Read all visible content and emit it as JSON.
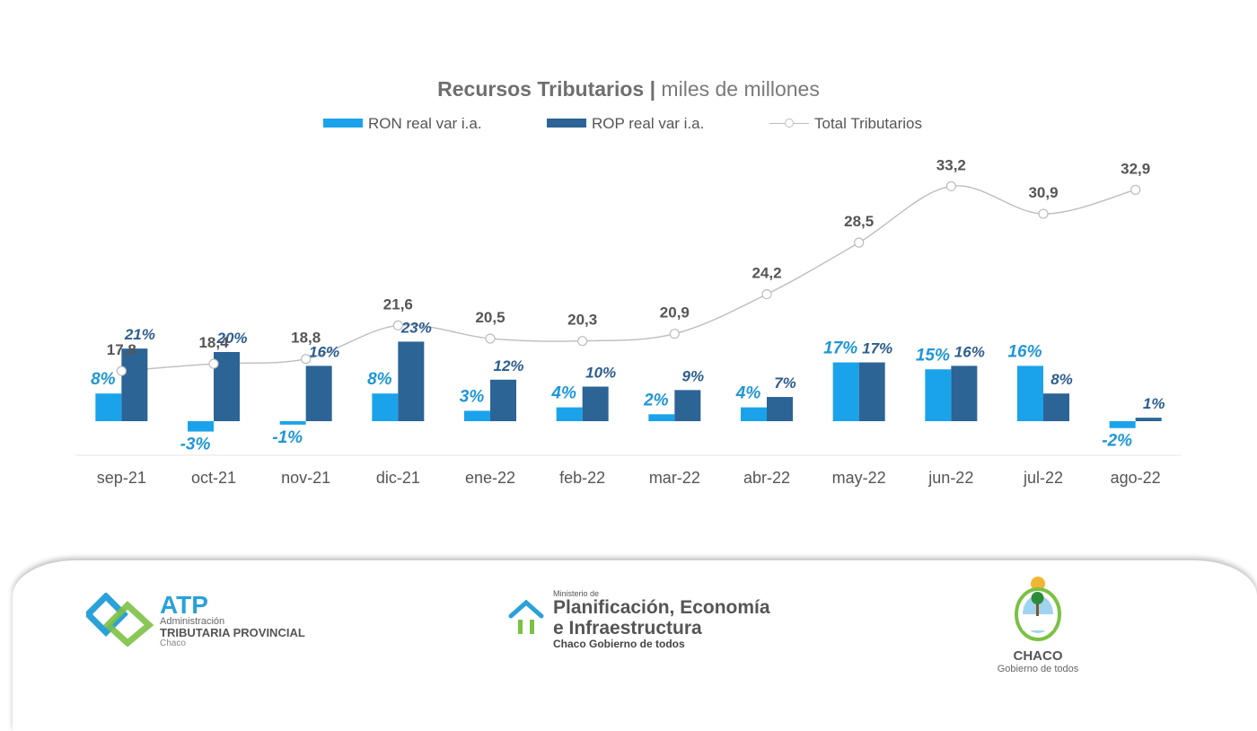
{
  "title_bold": "Recursos Tributarios |",
  "title_rest": " miles de millones",
  "legend": [
    {
      "label": "RON real var i.a.",
      "color": "#1aa3ea"
    },
    {
      "label": "ROP real var i.a.",
      "color": "#2c6496"
    },
    {
      "label": "Total Tributarios",
      "color": "#bdbdbd"
    }
  ],
  "chart_data": {
    "type": "bar",
    "title": "Recursos Tributarios | miles de millones",
    "categories": [
      "sep-21",
      "oct-21",
      "nov-21",
      "dic-21",
      "ene-22",
      "feb-22",
      "mar-22",
      "abr-22",
      "may-22",
      "jun-22",
      "jul-22",
      "ago-22"
    ],
    "series": [
      {
        "name": "RON real var i.a.",
        "type": "bar",
        "color": "#1aa3ea",
        "values": [
          8,
          -3,
          -1,
          8,
          3,
          4,
          2,
          4,
          17,
          15,
          16,
          -2
        ],
        "labels": [
          "8%",
          "-3%",
          "-1%",
          "8%",
          "3%",
          "4%",
          "2%",
          "4%",
          "17%",
          "15%",
          "16%",
          "-2%"
        ]
      },
      {
        "name": "ROP real var i.a.",
        "type": "bar",
        "color": "#2c6496",
        "values": [
          21,
          20,
          16,
          23,
          12,
          10,
          9,
          7,
          17,
          16,
          8,
          1
        ],
        "labels": [
          "21%",
          "20%",
          "16%",
          "23%",
          "12%",
          "10%",
          "9%",
          "7%",
          "17%",
          "16%",
          "8%",
          "1%"
        ]
      },
      {
        "name": "Total Tributarios",
        "type": "line",
        "color": "#bdbdbd",
        "values": [
          17.8,
          18.4,
          18.8,
          21.6,
          20.5,
          20.3,
          20.9,
          24.2,
          28.5,
          33.2,
          30.9,
          32.9
        ],
        "labels": [
          "17,8",
          "18,4",
          "18,8",
          "21,6",
          "20,5",
          "20,3",
          "20,9",
          "24,2",
          "28,5",
          "33,2",
          "30,9",
          "32,9"
        ]
      }
    ],
    "label_colors": {
      "ron": "#1f96d8",
      "rop": "#2c5d8f",
      "total": "#555555",
      "axis": "#555555"
    },
    "grid": false,
    "legend_position": "top"
  },
  "footer": {
    "atp": {
      "big": "ATP",
      "line1": "Administración",
      "line2": "TRIBUTARIA PROVINCIAL",
      "line3": "Chaco"
    },
    "ministerio": {
      "line0": "Ministerio de",
      "line1": "Planificación, Economía",
      "line2": "e Infraestructura",
      "line3": "Chaco Gobierno de todos"
    },
    "chaco": {
      "line1": "CHACO",
      "line2": "Gobierno de todos"
    }
  }
}
